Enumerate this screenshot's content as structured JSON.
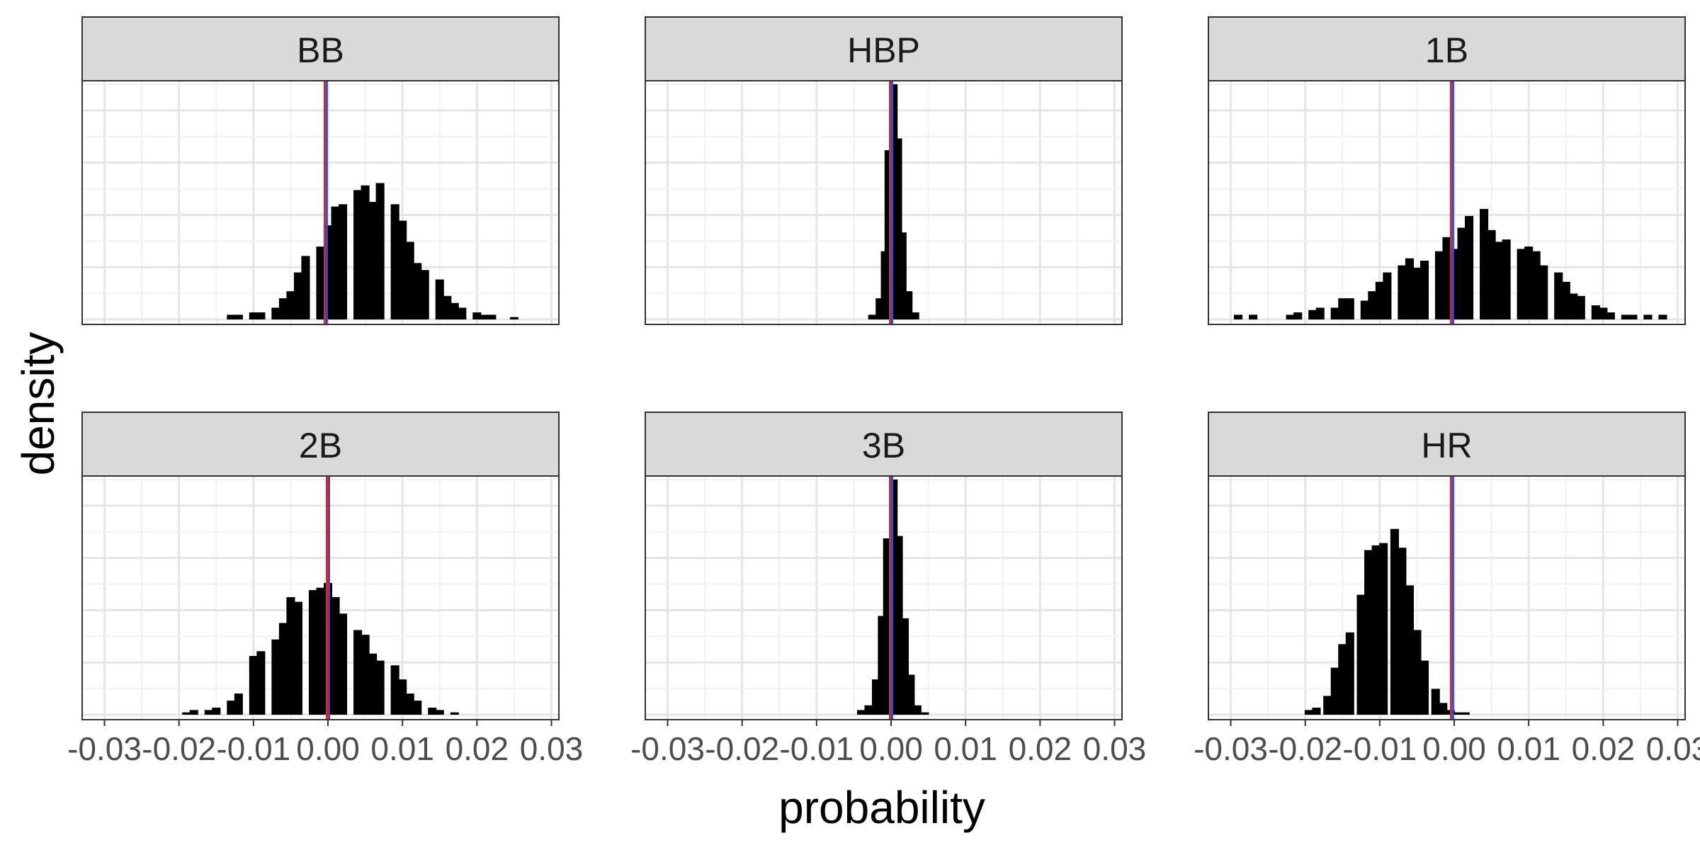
{
  "chart_data": {
    "type": "histogram",
    "facet_layout": "3 columns x 2 rows",
    "xlabel": "probability",
    "ylabel": "density",
    "xlim": [
      -0.033,
      0.031
    ],
    "x_ticks": [
      "-0.03",
      "-0.02",
      "-0.01",
      "0.00",
      "0.01",
      "0.02",
      "0.03"
    ],
    "y_ticks_shown": false,
    "ylim_relative": [
      0,
      1
    ],
    "grid": true,
    "reference_lines": [
      {
        "color": "#d62728",
        "x": 0.0
      },
      {
        "color": "#3b4cc0",
        "x": 0.0
      }
    ],
    "bar_color": "#000000",
    "panels": [
      {
        "title": "BB",
        "reference_x": -0.0003,
        "bins": [
          {
            "x": -0.013,
            "h": 0.02
          },
          {
            "x": -0.012,
            "h": 0.02
          },
          {
            "x": -0.01,
            "h": 0.03
          },
          {
            "x": -0.009,
            "h": 0.03
          },
          {
            "x": -0.007,
            "h": 0.05
          },
          {
            "x": -0.006,
            "h": 0.09
          },
          {
            "x": -0.005,
            "h": 0.12
          },
          {
            "x": -0.004,
            "h": 0.2
          },
          {
            "x": -0.003,
            "h": 0.27
          },
          {
            "x": -0.001,
            "h": 0.31
          },
          {
            "x": 0.0,
            "h": 0.4
          },
          {
            "x": 0.001,
            "h": 0.48
          },
          {
            "x": 0.002,
            "h": 0.49
          },
          {
            "x": 0.004,
            "h": 0.55
          },
          {
            "x": 0.005,
            "h": 0.57
          },
          {
            "x": 0.006,
            "h": 0.5
          },
          {
            "x": 0.007,
            "h": 0.58
          },
          {
            "x": 0.009,
            "h": 0.49
          },
          {
            "x": 0.01,
            "h": 0.42
          },
          {
            "x": 0.011,
            "h": 0.33
          },
          {
            "x": 0.012,
            "h": 0.24
          },
          {
            "x": 0.013,
            "h": 0.21
          },
          {
            "x": 0.015,
            "h": 0.17
          },
          {
            "x": 0.016,
            "h": 0.1
          },
          {
            "x": 0.017,
            "h": 0.07
          },
          {
            "x": 0.018,
            "h": 0.05
          },
          {
            "x": 0.02,
            "h": 0.03
          },
          {
            "x": 0.021,
            "h": 0.02
          },
          {
            "x": 0.022,
            "h": 0.02
          },
          {
            "x": 0.025,
            "h": 0.01
          }
        ]
      },
      {
        "title": "HBP",
        "reference_x": 0.0,
        "bins": [
          {
            "x": -0.0025,
            "h": 0.02
          },
          {
            "x": -0.0015,
            "h": 0.09
          },
          {
            "x": -0.0008,
            "h": 0.29
          },
          {
            "x": -0.0003,
            "h": 0.72
          },
          {
            "x": 0.0003,
            "h": 1.0
          },
          {
            "x": 0.0009,
            "h": 0.77
          },
          {
            "x": 0.0015,
            "h": 0.37
          },
          {
            "x": 0.0023,
            "h": 0.12
          },
          {
            "x": 0.0032,
            "h": 0.03
          }
        ]
      },
      {
        "title": "1B",
        "reference_x": -0.0003,
        "bins": [
          {
            "x": -0.029,
            "h": 0.02
          },
          {
            "x": -0.027,
            "h": 0.02
          },
          {
            "x": -0.022,
            "h": 0.02
          },
          {
            "x": -0.021,
            "h": 0.03
          },
          {
            "x": -0.019,
            "h": 0.04
          },
          {
            "x": -0.018,
            "h": 0.05
          },
          {
            "x": -0.016,
            "h": 0.05
          },
          {
            "x": -0.015,
            "h": 0.09
          },
          {
            "x": -0.014,
            "h": 0.09
          },
          {
            "x": -0.012,
            "h": 0.08
          },
          {
            "x": -0.011,
            "h": 0.12
          },
          {
            "x": -0.01,
            "h": 0.16
          },
          {
            "x": -0.009,
            "h": 0.2
          },
          {
            "x": -0.007,
            "h": 0.23
          },
          {
            "x": -0.006,
            "h": 0.26
          },
          {
            "x": -0.005,
            "h": 0.22
          },
          {
            "x": -0.004,
            "h": 0.25
          },
          {
            "x": -0.002,
            "h": 0.29
          },
          {
            "x": -0.001,
            "h": 0.35
          },
          {
            "x": 0.0,
            "h": 0.3
          },
          {
            "x": 0.001,
            "h": 0.39
          },
          {
            "x": 0.002,
            "h": 0.44
          },
          {
            "x": 0.004,
            "h": 0.47
          },
          {
            "x": 0.005,
            "h": 0.38
          },
          {
            "x": 0.006,
            "h": 0.33
          },
          {
            "x": 0.007,
            "h": 0.34
          },
          {
            "x": 0.009,
            "h": 0.3
          },
          {
            "x": 0.01,
            "h": 0.31
          },
          {
            "x": 0.011,
            "h": 0.29
          },
          {
            "x": 0.012,
            "h": 0.23
          },
          {
            "x": 0.014,
            "h": 0.2
          },
          {
            "x": 0.015,
            "h": 0.16
          },
          {
            "x": 0.016,
            "h": 0.11
          },
          {
            "x": 0.017,
            "h": 0.1
          },
          {
            "x": 0.019,
            "h": 0.06
          },
          {
            "x": 0.02,
            "h": 0.05
          },
          {
            "x": 0.021,
            "h": 0.03
          },
          {
            "x": 0.023,
            "h": 0.02
          },
          {
            "x": 0.024,
            "h": 0.02
          },
          {
            "x": 0.026,
            "h": 0.02
          },
          {
            "x": 0.028,
            "h": 0.02
          }
        ]
      },
      {
        "title": "2B",
        "reference_x": 0.0,
        "bins": [
          {
            "x": -0.019,
            "h": 0.01
          },
          {
            "x": -0.018,
            "h": 0.02
          },
          {
            "x": -0.016,
            "h": 0.02
          },
          {
            "x": -0.015,
            "h": 0.03
          },
          {
            "x": -0.013,
            "h": 0.06
          },
          {
            "x": -0.012,
            "h": 0.09
          },
          {
            "x": -0.01,
            "h": 0.25
          },
          {
            "x": -0.009,
            "h": 0.27
          },
          {
            "x": -0.007,
            "h": 0.32
          },
          {
            "x": -0.006,
            "h": 0.39
          },
          {
            "x": -0.005,
            "h": 0.5
          },
          {
            "x": -0.004,
            "h": 0.48
          },
          {
            "x": -0.002,
            "h": 0.53
          },
          {
            "x": -0.001,
            "h": 0.54
          },
          {
            "x": 0.0,
            "h": 0.56
          },
          {
            "x": 0.001,
            "h": 0.5
          },
          {
            "x": 0.002,
            "h": 0.43
          },
          {
            "x": 0.004,
            "h": 0.36
          },
          {
            "x": 0.005,
            "h": 0.34
          },
          {
            "x": 0.006,
            "h": 0.26
          },
          {
            "x": 0.007,
            "h": 0.23
          },
          {
            "x": 0.009,
            "h": 0.21
          },
          {
            "x": 0.01,
            "h": 0.15
          },
          {
            "x": 0.011,
            "h": 0.09
          },
          {
            "x": 0.012,
            "h": 0.06
          },
          {
            "x": 0.014,
            "h": 0.03
          },
          {
            "x": 0.015,
            "h": 0.02
          },
          {
            "x": 0.017,
            "h": 0.01
          }
        ]
      },
      {
        "title": "3B",
        "reference_x": 0.0,
        "bins": [
          {
            "x": -0.004,
            "h": 0.02
          },
          {
            "x": -0.003,
            "h": 0.04
          },
          {
            "x": -0.002,
            "h": 0.15
          },
          {
            "x": -0.0012,
            "h": 0.42
          },
          {
            "x": -0.0005,
            "h": 0.75
          },
          {
            "x": 0.0003,
            "h": 1.0
          },
          {
            "x": 0.001,
            "h": 0.76
          },
          {
            "x": 0.0018,
            "h": 0.41
          },
          {
            "x": 0.0026,
            "h": 0.17
          },
          {
            "x": 0.0035,
            "h": 0.04
          },
          {
            "x": 0.0045,
            "h": 0.01
          }
        ]
      },
      {
        "title": "HR",
        "reference_x": -0.0003,
        "bins": [
          {
            "x": -0.0195,
            "h": 0.02
          },
          {
            "x": -0.0185,
            "h": 0.03
          },
          {
            "x": -0.017,
            "h": 0.08
          },
          {
            "x": -0.016,
            "h": 0.2
          },
          {
            "x": -0.015,
            "h": 0.3
          },
          {
            "x": -0.014,
            "h": 0.35
          },
          {
            "x": -0.0125,
            "h": 0.51
          },
          {
            "x": -0.0115,
            "h": 0.7
          },
          {
            "x": -0.0105,
            "h": 0.72
          },
          {
            "x": -0.0095,
            "h": 0.73
          },
          {
            "x": -0.008,
            "h": 0.79
          },
          {
            "x": -0.007,
            "h": 0.71
          },
          {
            "x": -0.006,
            "h": 0.55
          },
          {
            "x": -0.005,
            "h": 0.36
          },
          {
            "x": -0.004,
            "h": 0.23
          },
          {
            "x": -0.0025,
            "h": 0.11
          },
          {
            "x": -0.0015,
            "h": 0.05
          },
          {
            "x": -0.0005,
            "h": 0.02
          },
          {
            "x": 0.0005,
            "h": 0.01
          },
          {
            "x": 0.0015,
            "h": 0.01
          }
        ]
      }
    ]
  }
}
